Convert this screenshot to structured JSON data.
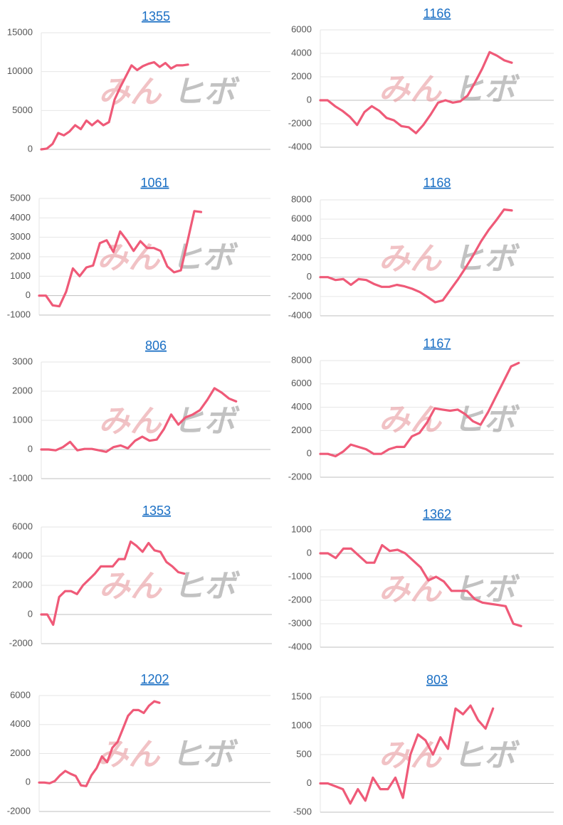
{
  "watermark": {
    "left": "みん",
    "right": "ヒボ"
  },
  "colors": {
    "line": "#ef5a78",
    "grid": "#e6e6e6",
    "zero": "#bfbfbf",
    "tick": "#555555",
    "title": "#1a6fc4"
  },
  "chart_data": [
    {
      "type": "line",
      "title": "1355",
      "ylim": [
        0,
        15000
      ],
      "yticks": [
        0,
        5000,
        10000,
        15000
      ],
      "values": [
        0,
        100,
        700,
        2100,
        1800,
        2300,
        3100,
        2600,
        3700,
        3100,
        3700,
        3100,
        3500,
        6400,
        8000,
        9400,
        10800,
        10200,
        10700,
        11000,
        11200,
        10600,
        11100,
        10400,
        10800,
        10800,
        10900
      ]
    },
    {
      "type": "line",
      "title": "1166",
      "ylim": [
        -4000,
        6000
      ],
      "yticks": [
        -4000,
        -2000,
        0,
        2000,
        4000,
        6000
      ],
      "values": [
        0,
        0,
        -500,
        -900,
        -1400,
        -2100,
        -1000,
        -500,
        -900,
        -1500,
        -1700,
        -2200,
        -2300,
        -2800,
        -2100,
        -1200,
        -200,
        0,
        -200,
        -100,
        400,
        1500,
        2700,
        4100,
        3800,
        3400,
        3200
      ]
    },
    {
      "type": "line",
      "title": "1061",
      "ylim": [
        -1000,
        5000
      ],
      "yticks": [
        -1000,
        0,
        1000,
        2000,
        3000,
        4000,
        5000
      ],
      "values": [
        0,
        0,
        -500,
        -550,
        200,
        1400,
        1000,
        1450,
        1550,
        2700,
        2850,
        2250,
        3300,
        2850,
        2300,
        2800,
        2450,
        2450,
        2300,
        1500,
        1200,
        1300,
        2800,
        4350,
        4300
      ]
    },
    {
      "type": "line",
      "title": "1168",
      "ylim": [
        -4000,
        8000
      ],
      "yticks": [
        -4000,
        -2000,
        0,
        2000,
        4000,
        6000,
        8000
      ],
      "values": [
        0,
        0,
        -300,
        -200,
        -800,
        -200,
        -300,
        -700,
        -1000,
        -1000,
        -800,
        -950,
        -1200,
        -1550,
        -2050,
        -2600,
        -2400,
        -1300,
        -200,
        1000,
        2300,
        3700,
        4900,
        5900,
        7000,
        6900
      ]
    },
    {
      "type": "line",
      "title": "806",
      "ylim": [
        -1000,
        3000
      ],
      "yticks": [
        -1000,
        0,
        1000,
        2000,
        3000
      ],
      "values": [
        0,
        0,
        -30,
        80,
        260,
        -30,
        20,
        20,
        -30,
        -80,
        80,
        140,
        40,
        300,
        440,
        300,
        340,
        700,
        1200,
        850,
        1100,
        1200,
        1350,
        1700,
        2100,
        1950,
        1750,
        1650
      ]
    },
    {
      "type": "line",
      "title": "1167",
      "ylim": [
        -2000,
        8000
      ],
      "yticks": [
        -2000,
        0,
        2000,
        4000,
        6000,
        8000
      ],
      "values": [
        0,
        0,
        -200,
        200,
        800,
        600,
        400,
        0,
        0,
        400,
        600,
        600,
        1500,
        1800,
        2700,
        3900,
        3800,
        3700,
        3800,
        3400,
        2800,
        2500,
        3600,
        4900,
        6200,
        7500,
        7800
      ]
    },
    {
      "type": "line",
      "title": "1353",
      "ylim": [
        -2000,
        6000
      ],
      "yticks": [
        -2000,
        0,
        2000,
        4000,
        6000
      ],
      "values": [
        0,
        0,
        -700,
        1200,
        1600,
        1600,
        1400,
        2000,
        2400,
        2800,
        3300,
        3300,
        3300,
        3800,
        3800,
        5000,
        4700,
        4300,
        4900,
        4400,
        4300,
        3600,
        3300,
        2900,
        2800
      ]
    },
    {
      "type": "line",
      "title": "1362",
      "ylim": [
        -4000,
        1000
      ],
      "yticks": [
        -4000,
        -3000,
        -2000,
        -1000,
        0,
        1000
      ],
      "values": [
        0,
        0,
        -200,
        200,
        200,
        -100,
        -400,
        -400,
        350,
        100,
        150,
        0,
        -300,
        -600,
        -1150,
        -1000,
        -1200,
        -1600,
        -1600,
        -1600,
        -1950,
        -2100,
        -2150,
        -2200,
        -2250,
        -3000,
        -3100
      ]
    },
    {
      "type": "line",
      "title": "1202",
      "ylim": [
        -2000,
        6000
      ],
      "yticks": [
        -2000,
        0,
        2000,
        4000,
        6000
      ],
      "values": [
        0,
        0,
        -50,
        100,
        500,
        800,
        600,
        450,
        -200,
        -250,
        500,
        1000,
        1800,
        1400,
        2400,
        2800,
        3700,
        4600,
        5000,
        5000,
        4800,
        5300,
        5600,
        5500
      ]
    },
    {
      "type": "line",
      "title": "803",
      "ylim": [
        -500,
        1500
      ],
      "yticks": [
        -500,
        0,
        500,
        1000,
        1500
      ],
      "values": [
        0,
        0,
        -50,
        -100,
        -350,
        -100,
        -300,
        100,
        -100,
        -100,
        100,
        -250,
        500,
        850,
        750,
        500,
        800,
        600,
        1300,
        1200,
        1350,
        1100,
        950,
        1300
      ]
    }
  ]
}
